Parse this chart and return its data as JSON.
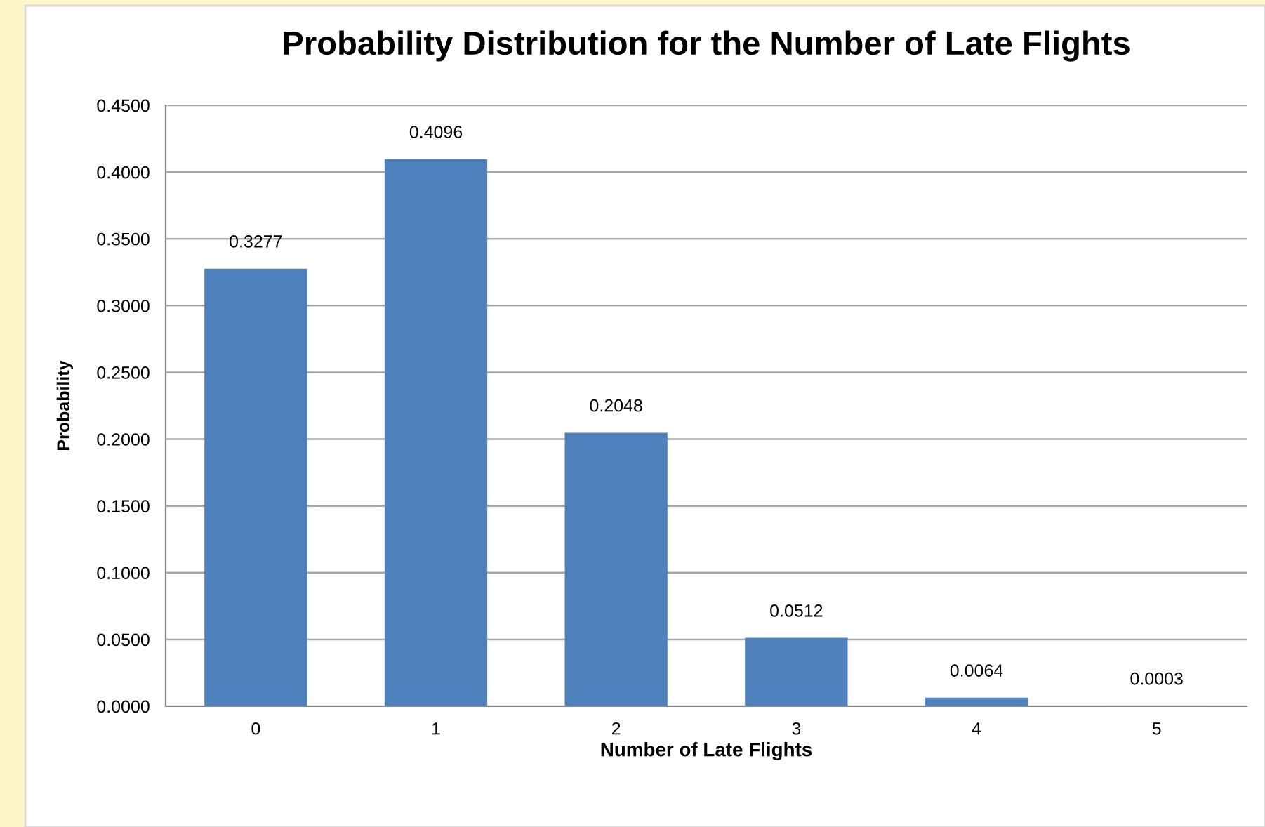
{
  "chart_data": {
    "type": "bar",
    "title": "Probability Distribution for the Number of Late Flights",
    "xlabel": "Number of Late Flights",
    "ylabel": "Probability",
    "categories": [
      "0",
      "1",
      "2",
      "3",
      "4",
      "5"
    ],
    "values": [
      0.3277,
      0.4096,
      0.2048,
      0.0512,
      0.0064,
      0.0003
    ],
    "color": "#4f81bd",
    "data_labels": true,
    "grid": "y",
    "ylim": [
      0,
      0.45
    ],
    "yticks": [
      {
        "value": 0,
        "label": "0.0000"
      },
      {
        "value": 0.05,
        "label": "0.0500"
      },
      {
        "value": 0.1,
        "label": "0.1000"
      },
      {
        "value": 0.15,
        "label": "0.1500"
      },
      {
        "value": 0.2,
        "label": "0.2000"
      },
      {
        "value": 0.25,
        "label": "0.2500"
      },
      {
        "value": 0.3,
        "label": "0.3000"
      },
      {
        "value": 0.35,
        "label": "0.3500"
      },
      {
        "value": 0.4,
        "label": "0.4000"
      },
      {
        "value": 0.45,
        "label": "0.4500"
      }
    ]
  }
}
